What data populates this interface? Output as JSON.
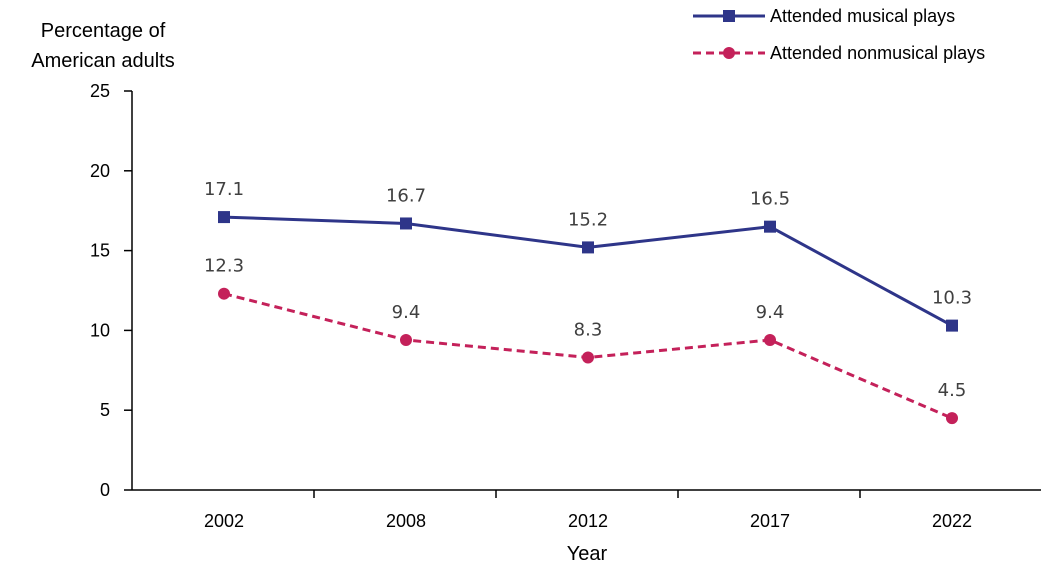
{
  "chart_data": {
    "type": "line",
    "categories": [
      "2002",
      "2008",
      "2012",
      "2017",
      "2022"
    ],
    "series": [
      {
        "name": "Attended musical plays",
        "values": [
          17.1,
          16.7,
          15.2,
          16.5,
          10.3
        ],
        "labels": [
          "17.1",
          "16.7",
          "15.2",
          "16.5",
          "10.3"
        ],
        "color": "#2e3589",
        "marker": "square",
        "line_style": "solid"
      },
      {
        "name": "Attended nonmusical plays",
        "values": [
          12.3,
          9.4,
          8.3,
          9.4,
          4.5
        ],
        "labels": [
          "12.3",
          "9.4",
          "8.3",
          "9.4",
          "4.5"
        ],
        "color": "#c4215a",
        "marker": "circle",
        "line_style": "dashed"
      }
    ],
    "ylabel_lines": [
      "Percentage of",
      "American adults"
    ],
    "xlabel": "Year",
    "ylim": [
      0,
      25
    ],
    "yticks": [
      "0",
      "5",
      "10",
      "15",
      "20",
      "25"
    ],
    "grid": false,
    "legend_position": "top-right"
  }
}
